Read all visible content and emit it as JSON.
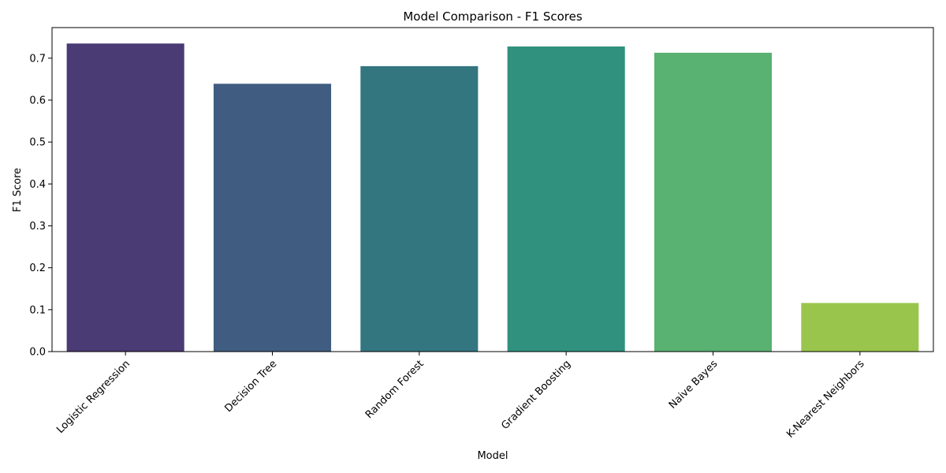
{
  "chart_data": {
    "type": "bar",
    "title": "Model Comparison - F1 Scores",
    "xlabel": "Model",
    "ylabel": "F1 Score",
    "categories": [
      "Logistic Regression",
      "Decision Tree",
      "Random Forest",
      "Gradient Boosting",
      "Naive Bayes",
      "K-Nearest Neighbors"
    ],
    "values": [
      0.735,
      0.639,
      0.681,
      0.728,
      0.713,
      0.116
    ],
    "colors": [
      "#4a3b75",
      "#405d81",
      "#347680",
      "#30917e",
      "#59b172",
      "#9ac54c"
    ],
    "ylim": [
      0,
      0.773
    ],
    "yticks": [
      0.0,
      0.1,
      0.2,
      0.3,
      0.4,
      0.5,
      0.6,
      0.7
    ],
    "ytick_labels": [
      "0.0",
      "0.1",
      "0.2",
      "0.3",
      "0.4",
      "0.5",
      "0.6",
      "0.7"
    ],
    "grid": false,
    "legend": "none"
  }
}
